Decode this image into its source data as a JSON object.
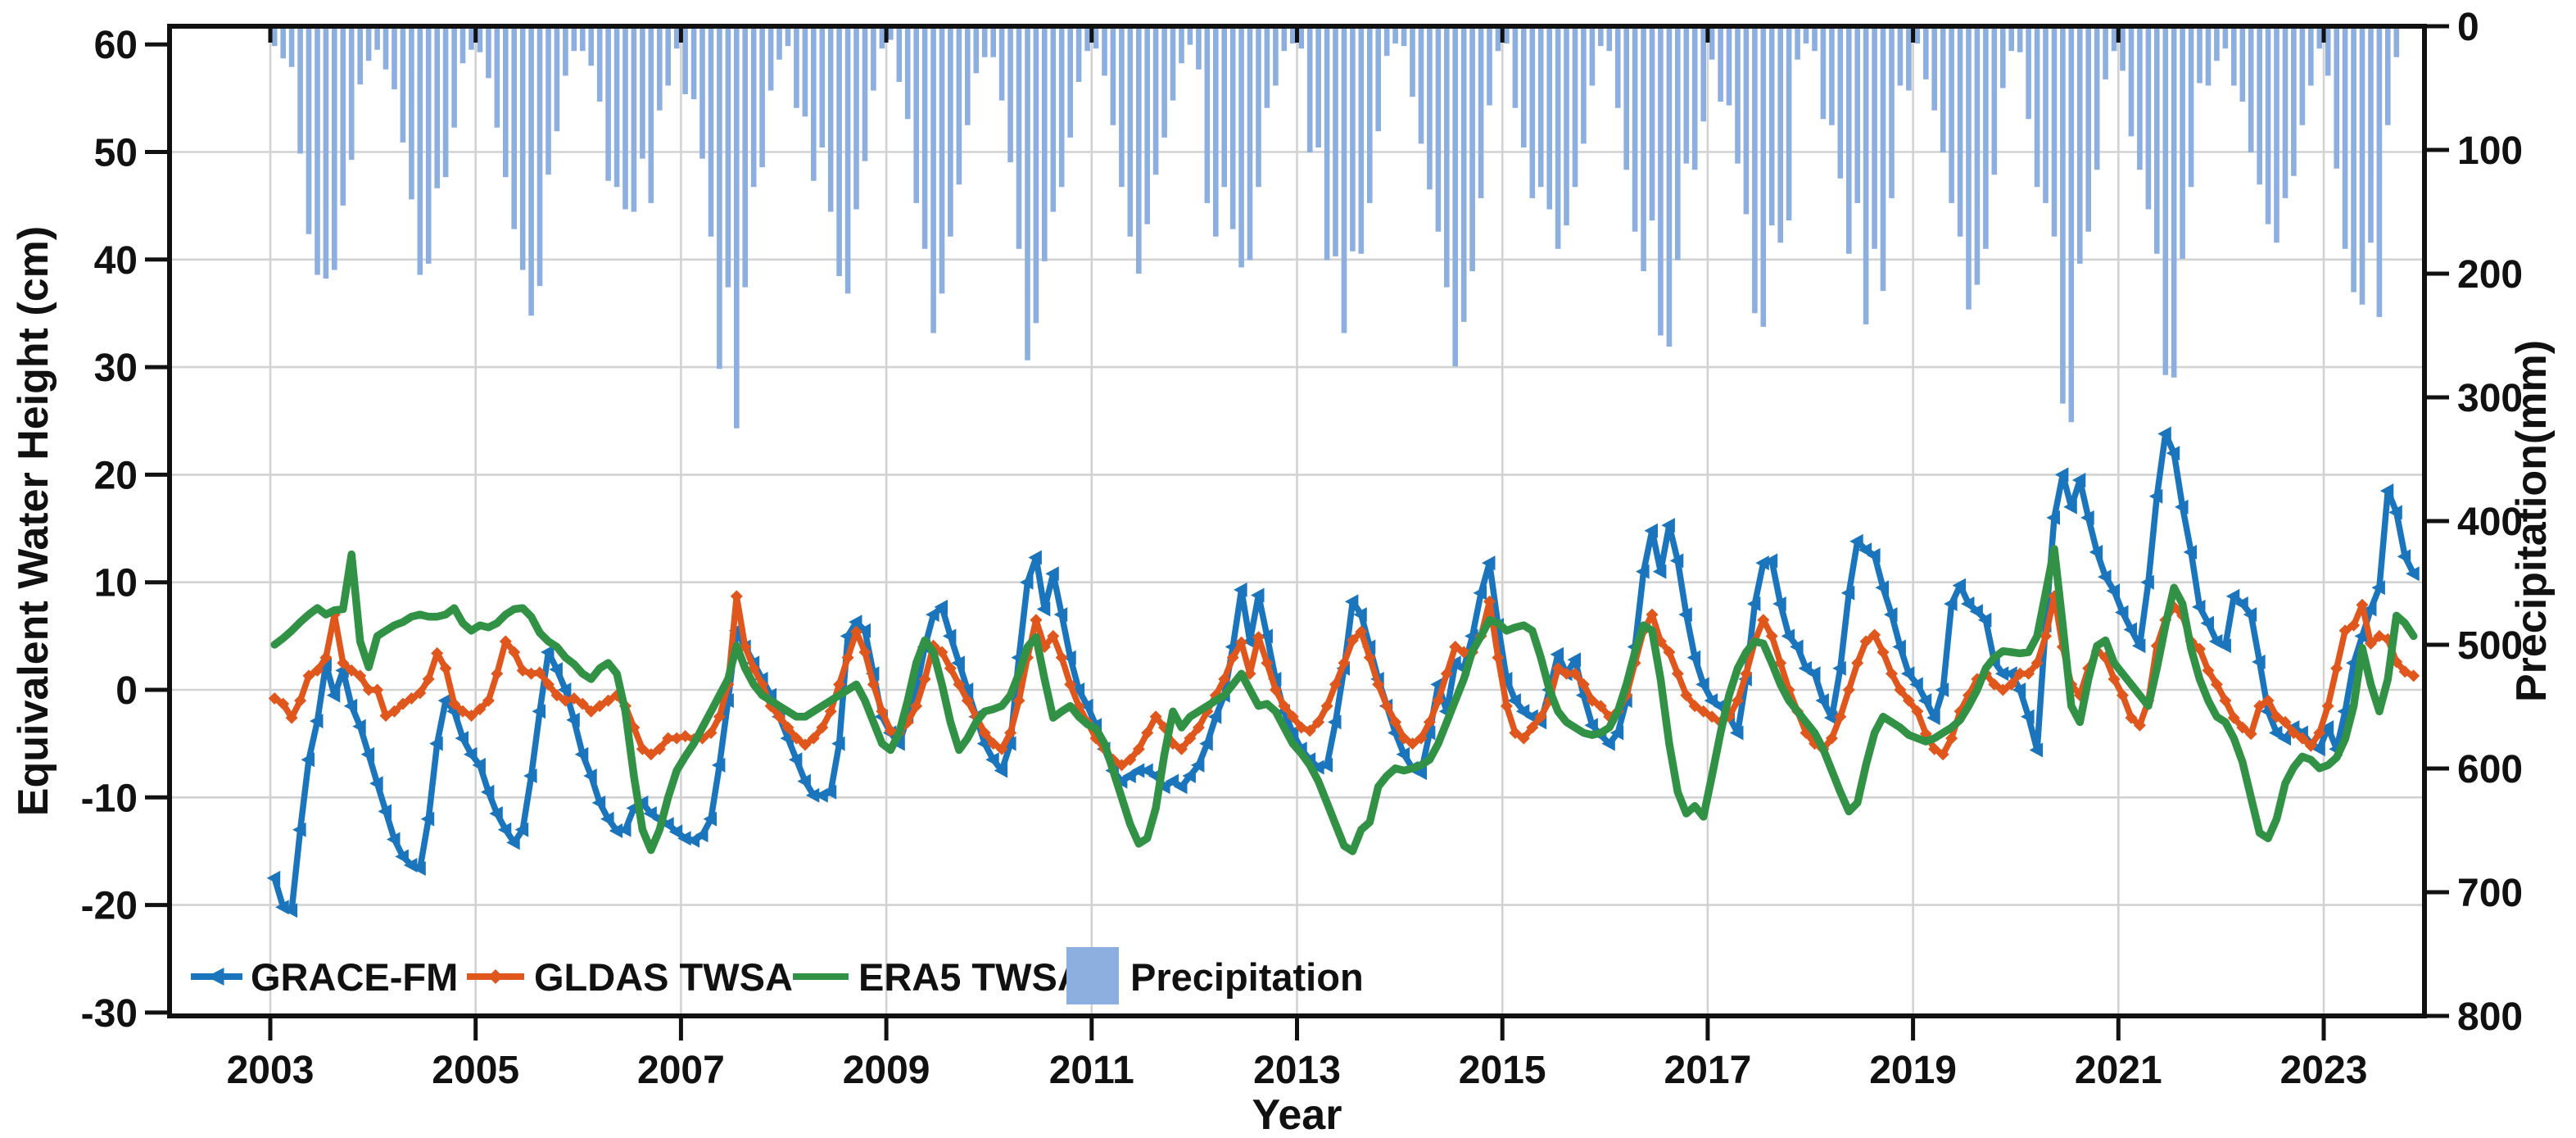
{
  "chart_data": {
    "type": "combo",
    "title": "",
    "xlabel": "Year",
    "ylabel_left": "Equivalent Water Height (cm)",
    "ylabel_right": "Precipitation(mm)",
    "x_tick_years": [
      2003,
      2005,
      2007,
      2009,
      2011,
      2013,
      2015,
      2017,
      2019,
      2021,
      2023
    ],
    "y_left_ticks": [
      60,
      50,
      40,
      30,
      20,
      10,
      0,
      -10,
      -20,
      -30
    ],
    "y_right_ticks": [
      0,
      100,
      200,
      300,
      400,
      500,
      600,
      700,
      800
    ],
    "ylim_left": [
      -30.3,
      61.7
    ],
    "ylim_right": [
      0,
      800
    ],
    "right_axis_inverted_from_top": true,
    "grid": true,
    "legend_position": "inside-bottom-left",
    "x_monthly_start": 2003.0,
    "x_monthly_end": 2023.92,
    "colors": {
      "grace": "#1b75bc",
      "gldas": "#e0571d",
      "era5": "#319246",
      "precip": "#8cafdf",
      "grid": "#d2d2d2",
      "axis": "#111111"
    },
    "series": [
      {
        "name": "GRACE-FM",
        "type": "line",
        "axis": "left",
        "marker": "triangle-left",
        "color": "#1b75bc",
        "values": [
          -17.5,
          -20.2,
          -20.5,
          -13,
          -6.5,
          -2.9,
          2.4,
          -0.5,
          1.8,
          -1.5,
          -3.4,
          -6,
          -8.7,
          -11.3,
          -13.9,
          -15.5,
          -16.3,
          -16.6,
          -12,
          -5,
          -1,
          -2,
          -4.5,
          -6,
          -7,
          -9.5,
          -11.5,
          -13,
          -14.2,
          -13,
          -8,
          -2,
          3.5,
          1.9,
          0,
          -2.8,
          -6,
          -8,
          -10.5,
          -12,
          -13.1,
          -13,
          -11,
          -10.5,
          -11.5,
          -12,
          -12.5,
          -13.2,
          -13.8,
          -14,
          -13.5,
          -12,
          -7,
          -1,
          5.5,
          4,
          2.5,
          1,
          -0.5,
          -2.5,
          -4.5,
          -6.5,
          -8.5,
          -9.8,
          -9.8,
          -9.5,
          -5,
          5,
          6.3,
          5.5,
          1.5,
          -2.5,
          -4,
          -5,
          -2.5,
          0,
          4,
          7,
          7.7,
          5,
          2.5,
          0,
          -2.5,
          -5,
          -6.5,
          -7.5,
          -5,
          3,
          10,
          12.3,
          7.5,
          10.8,
          7,
          3,
          0,
          -1.5,
          -3.3,
          -5.5,
          -7.5,
          -8.5,
          -8,
          -7.5,
          -7.5,
          -8,
          -9,
          -8.5,
          -9,
          -8,
          -7,
          -5,
          -2.5,
          -0.5,
          4,
          9.3,
          4.5,
          8.8,
          5,
          1,
          -2,
          -4,
          -5.5,
          -6.5,
          -7.2,
          -7,
          -3,
          2,
          8.2,
          7,
          4,
          1,
          -1.5,
          -4,
          -6,
          -7.3,
          -7.7,
          -4,
          0.5,
          -2,
          2.5,
          2,
          5,
          9,
          11.8,
          6,
          1,
          -1,
          -2,
          -2.5,
          -3,
          0,
          3.3,
          1.5,
          2.8,
          -0.5,
          -3.3,
          -4.2,
          -5,
          -4,
          -1,
          4,
          11,
          14.8,
          11,
          15.3,
          12,
          7,
          3,
          0.5,
          -1,
          -1.5,
          -2.5,
          -4,
          1,
          8,
          11.8,
          12,
          8,
          5,
          4,
          2,
          1.5,
          -1,
          -2.6,
          2,
          9,
          13.8,
          13,
          12.5,
          9.5,
          7,
          4,
          1.5,
          0.5,
          -1,
          -2.6,
          0,
          8,
          9.7,
          8,
          7.3,
          6.5,
          2.6,
          1.5,
          1.5,
          0,
          -2.5,
          -5.6,
          6,
          16,
          20,
          17,
          19.5,
          16,
          12.8,
          10.5,
          9.2,
          7.2,
          5.6,
          4.1,
          10,
          18,
          23.8,
          22,
          17,
          12.8,
          7.7,
          6.2,
          4.5,
          4.1,
          8.7,
          8,
          7,
          2.6,
          -2,
          -4,
          -4.5,
          -3.5,
          -4,
          -5,
          -5.5,
          -3.5,
          -5.5,
          -2,
          2.5,
          5,
          7.5,
          9.5,
          18.5,
          16.5,
          12.4,
          10.8,
          null
        ]
      },
      {
        "name": "GLDAS TWSA",
        "type": "line",
        "axis": "left",
        "marker": "diamond",
        "color": "#e0571d",
        "values": [
          -0.8,
          -1.3,
          -2.6,
          -1,
          1.3,
          1.8,
          3,
          7,
          2.5,
          1.8,
          1.3,
          0,
          0,
          -2.4,
          -2,
          -1.3,
          -0.8,
          -0.3,
          1,
          3.4,
          2,
          -1.3,
          -2,
          -2.4,
          -1.8,
          -1,
          1.5,
          4.5,
          3.5,
          1.8,
          1.5,
          1.6,
          0.5,
          -0.5,
          -1,
          -0.8,
          -1.3,
          -2,
          -1.5,
          -1,
          -0.5,
          -1.5,
          -3.5,
          -5.5,
          -6,
          -5.5,
          -4.5,
          -4.5,
          -4.3,
          -4.6,
          -4.5,
          -4,
          -2.5,
          0.5,
          8.7,
          4,
          2,
          0.5,
          -1.5,
          -2.5,
          -3.5,
          -4.5,
          -5.1,
          -4.5,
          -3.5,
          -2,
          0.5,
          3,
          5.4,
          3.5,
          0.5,
          -2,
          -3.8,
          -4,
          -3,
          -1.5,
          1,
          4.1,
          3.5,
          2,
          0.5,
          -1,
          -2.5,
          -4,
          -5,
          -5.5,
          -4,
          -1,
          3,
          6.5,
          4,
          5,
          3,
          0.5,
          -1.5,
          -3,
          -4.5,
          -5.5,
          -6.5,
          -7,
          -6.5,
          -5.5,
          -4,
          -2.5,
          -3.5,
          -5,
          -5.5,
          -4.5,
          -3.5,
          -2,
          -0.5,
          1,
          3,
          4.4,
          1.5,
          4.9,
          2.5,
          0,
          -1.5,
          -2.5,
          -3.5,
          -3.8,
          -3,
          -1.5,
          0.5,
          2.5,
          4.6,
          5.4,
          3,
          0.5,
          -1.5,
          -3,
          -4.5,
          -5,
          -4.5,
          -3,
          -1,
          1.5,
          4,
          3.5,
          3.5,
          5,
          8.2,
          3,
          -1.5,
          -4,
          -4.5,
          -3.5,
          -2.5,
          -1,
          2,
          1.5,
          1.5,
          0.5,
          -1,
          -1.5,
          -2.5,
          -2,
          -0.5,
          2.5,
          5.5,
          7,
          4.5,
          3.5,
          1.5,
          -0.5,
          -1.5,
          -2,
          -2.5,
          -3,
          -2.5,
          -1,
          1.5,
          4.5,
          6.5,
          5,
          2.5,
          0,
          -2,
          -4,
          -5,
          -5.5,
          -4.5,
          -2.5,
          0,
          2.5,
          4.5,
          5.1,
          3.5,
          1.5,
          0,
          -1,
          -2,
          -4.1,
          -5.5,
          -6,
          -4.5,
          -2,
          -0.5,
          1,
          1.5,
          0.5,
          0,
          0.5,
          1.5,
          1.5,
          2.5,
          5,
          8.7,
          4,
          0.5,
          -0.5,
          2,
          3.6,
          3,
          1,
          -0.5,
          -2.6,
          -3.3,
          -1,
          4.1,
          6.5,
          7.7,
          6.9,
          4.5,
          3.8,
          1.8,
          0.5,
          -1,
          -2.6,
          -3.5,
          -4.1,
          -1.5,
          -1,
          -2.5,
          -3,
          -4,
          -4.5,
          -5.2,
          -4,
          -1.5,
          2,
          5.5,
          6,
          7.9,
          4.3,
          5,
          4.7,
          2.6,
          1.7,
          1.3,
          null
        ]
      },
      {
        "name": "ERA5 TWSA",
        "type": "line",
        "axis": "left",
        "marker": "none",
        "color": "#319246",
        "values": [
          4.2,
          4.8,
          5.5,
          6.3,
          7,
          7.6,
          7,
          7.4,
          7.5,
          12.6,
          4.5,
          2.1,
          5,
          5.5,
          6,
          6.3,
          6.8,
          7,
          6.8,
          6.8,
          7,
          7.6,
          6.2,
          5.5,
          6,
          5.8,
          6.2,
          7,
          7.5,
          7.6,
          6.8,
          5.3,
          4.5,
          4,
          3,
          2.4,
          1.5,
          1,
          2,
          2.5,
          1.5,
          -2,
          -8,
          -13,
          -14.9,
          -13,
          -10,
          -7.5,
          -6.2,
          -5,
          -3.5,
          -2,
          -0.5,
          1,
          4.1,
          2,
          0.5,
          -0.5,
          -1,
          -1.5,
          -2,
          -2.5,
          -2.5,
          -2,
          -1.5,
          -1,
          -0.5,
          0,
          0.5,
          -1,
          -3,
          -5,
          -5.6,
          -4,
          -1,
          2.5,
          4.6,
          3.5,
          0.5,
          -3,
          -5.6,
          -4.5,
          -3,
          -2,
          -1.8,
          -1.5,
          -0.5,
          1.5,
          4,
          4.9,
          1,
          -2.6,
          -2,
          -1.5,
          -2.5,
          -3.2,
          -3.6,
          -5,
          -7.5,
          -10,
          -12.5,
          -14.3,
          -13.8,
          -11,
          -6,
          -2,
          -3.5,
          -2.5,
          -2,
          -1.5,
          -1,
          -0.5,
          0.5,
          1.5,
          0,
          -1.5,
          -1.3,
          -2,
          -3.5,
          -5,
          -5.9,
          -7,
          -8.5,
          -10.5,
          -12.5,
          -14.5,
          -15,
          -13,
          -12.3,
          -9,
          -8,
          -7.3,
          -7.5,
          -7.3,
          -7,
          -6.5,
          -5,
          -3,
          -1,
          1,
          3.6,
          5,
          6.5,
          6.2,
          5.5,
          5.8,
          6,
          5.5,
          3,
          0,
          -2,
          -3,
          -3.5,
          -4,
          -4.2,
          -4,
          -3.5,
          -2,
          0.5,
          3.5,
          6,
          5.5,
          1,
          -5,
          -9.5,
          -11.5,
          -10.8,
          -11.8,
          -8,
          -4,
          -0.5,
          2,
          3.5,
          4.5,
          4.3,
          2.5,
          0.5,
          -1,
          -2,
          -3,
          -4,
          -5.5,
          -7.5,
          -9.5,
          -11.3,
          -10.5,
          -7,
          -4,
          -2.5,
          -3,
          -3.5,
          -4.2,
          -4.5,
          -4.8,
          -4.5,
          -4,
          -3.5,
          -2.8,
          -1.5,
          0,
          2,
          3,
          3.6,
          3.5,
          3.4,
          3.5,
          5,
          9,
          13.1,
          6,
          -1.5,
          -3,
          1,
          4.1,
          4.6,
          2.5,
          1.5,
          0.5,
          -0.5,
          -1.5,
          2,
          6,
          9.5,
          8,
          3.8,
          1,
          -1,
          -2.5,
          -3,
          -4.5,
          -6.7,
          -10,
          -13.3,
          -13.8,
          -12,
          -8.7,
          -7.2,
          -6.2,
          -6.5,
          -7.3,
          -7,
          -6.3,
          -4.6,
          -1.5,
          3.9,
          0.5,
          -2,
          1,
          6.9,
          6.2,
          5,
          null
        ]
      },
      {
        "name": "Precipitation",
        "type": "bar",
        "axis": "right",
        "marker": "square-patch",
        "color": "#8cafdf",
        "values": [
          16,
          26,
          33,
          103,
          168,
          201,
          204,
          197,
          145,
          108,
          47,
          28,
          19,
          35,
          51,
          94,
          140,
          201,
          192,
          131,
          122,
          82,
          30,
          19,
          21,
          42,
          82,
          122,
          164,
          197,
          234,
          210,
          120,
          85,
          40,
          20,
          20,
          32,
          61,
          125,
          130,
          148,
          150,
          107,
          143,
          68,
          48,
          18,
          55,
          59,
          107,
          170,
          277,
          211,
          325,
          211,
          130,
          114,
          52,
          27,
          16,
          66,
          73,
          125,
          98,
          150,
          202,
          216,
          148,
          109,
          52,
          18,
          11,
          45,
          75,
          143,
          180,
          248,
          216,
          170,
          128,
          80,
          38,
          25,
          25,
          60,
          110,
          180,
          270,
          240,
          190,
          150,
          130,
          90,
          45,
          20,
          18,
          40,
          80,
          130,
          170,
          200,
          160,
          120,
          90,
          60,
          30,
          15,
          35,
          143,
          170,
          130,
          164,
          195,
          189,
          130,
          66,
          48,
          20,
          14,
          18,
          102,
          98,
          189,
          186,
          248,
          182,
          184,
          143,
          85,
          24,
          14,
          16,
          57,
          95,
          132,
          166,
          211,
          275,
          239,
          198,
          139,
          64,
          20,
          14,
          66,
          98,
          139,
          130,
          148,
          180,
          161,
          130,
          95,
          48,
          16,
          20,
          66,
          116,
          166,
          198,
          157,
          250,
          259,
          189,
          111,
          116,
          77,
          27,
          61,
          64,
          111,
          152,
          232,
          243,
          161,
          175,
          157,
          27,
          14,
          20,
          75,
          80,
          123,
          184,
          143,
          241,
          180,
          214,
          139,
          48,
          52,
          14,
          43,
          68,
          102,
          143,
          170,
          229,
          209,
          180,
          120,
          50,
          20,
          21,
          75,
          130,
          143,
          170,
          305,
          320,
          192,
          166,
          116,
          43,
          20,
          36,
          89,
          116,
          148,
          184,
          282,
          284,
          188,
          130,
          46,
          48,
          28,
          18,
          48,
          61,
          102,
          128,
          160,
          175,
          139,
          121,
          80,
          48,
          18,
          40,
          115,
          180,
          215,
          225,
          175,
          235,
          80,
          25,
          null,
          null,
          null
        ]
      }
    ],
    "legend": [
      {
        "label": "GRACE-FM",
        "swatch": "line-triangle-left",
        "color": "#1b75bc"
      },
      {
        "label": "GLDAS TWSA",
        "swatch": "line-diamond",
        "color": "#e0571d"
      },
      {
        "label": "ERA5 TWSA",
        "swatch": "line",
        "color": "#319246"
      },
      {
        "label": "Precipitation",
        "swatch": "patch",
        "color": "#8cafdf"
      }
    ]
  }
}
